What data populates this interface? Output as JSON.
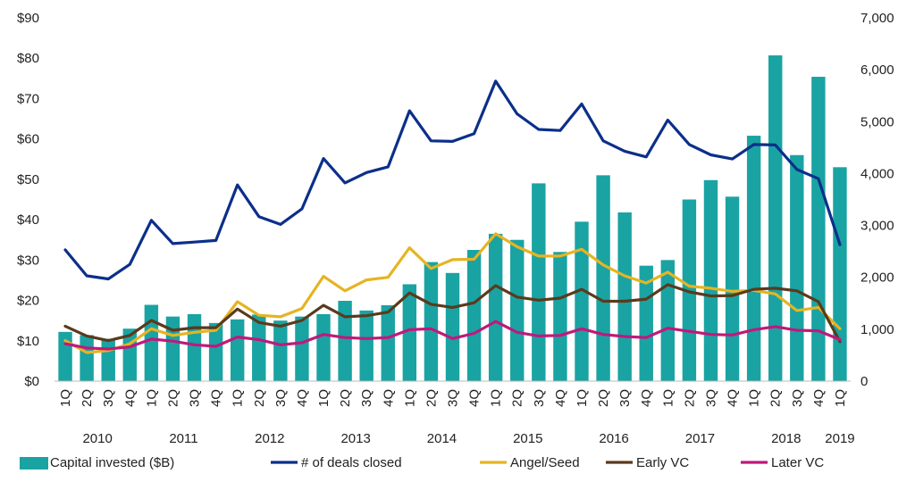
{
  "chart_data": {
    "type": "bar+line",
    "title": "",
    "categories": [
      "1Q",
      "2Q",
      "3Q",
      "4Q",
      "1Q",
      "2Q",
      "3Q",
      "4Q",
      "1Q",
      "2Q",
      "3Q",
      "4Q",
      "1Q",
      "2Q",
      "3Q",
      "4Q",
      "1Q",
      "2Q",
      "3Q",
      "4Q",
      "1Q",
      "2Q",
      "3Q",
      "4Q",
      "1Q",
      "2Q",
      "3Q",
      "4Q",
      "1Q",
      "2Q",
      "3Q",
      "4Q",
      "1Q",
      "2Q",
      "3Q",
      "4Q",
      "1Q"
    ],
    "years": [
      {
        "label": "2010",
        "start": 0,
        "end": 3
      },
      {
        "label": "2011",
        "start": 4,
        "end": 7
      },
      {
        "label": "2012",
        "start": 8,
        "end": 11
      },
      {
        "label": "2013",
        "start": 12,
        "end": 15
      },
      {
        "label": "2014",
        "start": 16,
        "end": 19
      },
      {
        "label": "2015",
        "start": 20,
        "end": 23
      },
      {
        "label": "2016",
        "start": 24,
        "end": 27
      },
      {
        "label": "2017",
        "start": 28,
        "end": 31
      },
      {
        "label": "2018",
        "start": 32,
        "end": 35
      },
      {
        "label": "2019",
        "start": 36,
        "end": 36
      }
    ],
    "y_left": {
      "ticks": [
        "$0",
        "$10",
        "$20",
        "$30",
        "$40",
        "$50",
        "$60",
        "$70",
        "$80",
        "$90"
      ],
      "min": 0,
      "max": 90
    },
    "y_right": {
      "ticks": [
        "0",
        "1,000",
        "2,000",
        "3,000",
        "4,000",
        "5,000",
        "6,000",
        "7,000"
      ],
      "min": 0,
      "max": 7000
    },
    "bars": {
      "name": "Capital invested ($B)",
      "color": "#1aa3a3",
      "axis": "left",
      "values": [
        12.2,
        11.4,
        10.5,
        13.0,
        18.9,
        16.0,
        16.6,
        14.4,
        15.3,
        16.5,
        15.0,
        16.0,
        16.6,
        19.9,
        17.5,
        18.8,
        24.0,
        29.5,
        26.8,
        32.5,
        36.5,
        35.0,
        49.0,
        32.0,
        39.5,
        51.0,
        41.8,
        28.6,
        30.0,
        45.0,
        49.8,
        45.7,
        60.8,
        80.7,
        56.0,
        75.4,
        53.0
      ]
    },
    "series": [
      {
        "name": "# of deals closed",
        "color": "#0b2f8a",
        "axis": "right",
        "values": [
          2530,
          2030,
          1970,
          2250,
          3100,
          2650,
          2680,
          2710,
          3780,
          3170,
          3020,
          3320,
          4290,
          3820,
          4020,
          4130,
          5210,
          4630,
          4620,
          4770,
          5780,
          5150,
          4850,
          4830,
          5340,
          4630,
          4430,
          4320,
          5030,
          4560,
          4360,
          4280,
          4560,
          4550,
          4080,
          3900,
          2630
        ]
      },
      {
        "name": "Angel/Seed",
        "color": "#e6b422",
        "axis": "right",
        "values": [
          780,
          550,
          590,
          720,
          1010,
          880,
          940,
          980,
          1530,
          1270,
          1240,
          1400,
          2020,
          1740,
          1950,
          2000,
          2570,
          2170,
          2340,
          2350,
          2840,
          2590,
          2410,
          2410,
          2540,
          2240,
          2030,
          1890,
          2100,
          1830,
          1790,
          1730,
          1750,
          1680,
          1360,
          1420,
          1010
        ]
      },
      {
        "name": "Early VC",
        "color": "#5a3a1c",
        "axis": "right",
        "values": [
          1060,
          870,
          780,
          880,
          1170,
          980,
          1030,
          1030,
          1390,
          1130,
          1060,
          1170,
          1460,
          1240,
          1260,
          1330,
          1700,
          1480,
          1420,
          1510,
          1840,
          1620,
          1560,
          1600,
          1770,
          1540,
          1540,
          1580,
          1860,
          1720,
          1640,
          1650,
          1770,
          1790,
          1740,
          1530,
          760
        ]
      },
      {
        "name": "Later VC",
        "color": "#c0187c",
        "axis": "right",
        "values": [
          720,
          640,
          620,
          660,
          810,
          770,
          700,
          670,
          850,
          800,
          700,
          740,
          900,
          840,
          820,
          840,
          990,
          1010,
          820,
          920,
          1150,
          940,
          870,
          880,
          1010,
          900,
          860,
          840,
          1020,
          960,
          900,
          890,
          990,
          1050,
          980,
          970,
          800
        ]
      }
    ],
    "legend": [
      {
        "label": "Capital invested ($B)",
        "color": "#1aa3a3",
        "kind": "box"
      },
      {
        "label": "# of deals closed",
        "color": "#0b2f8a",
        "kind": "line"
      },
      {
        "label": "Angel/Seed",
        "color": "#e6b422",
        "kind": "line"
      },
      {
        "label": "Early VC",
        "color": "#5a3a1c",
        "kind": "line"
      },
      {
        "label": "Later VC",
        "color": "#c0187c",
        "kind": "line"
      }
    ],
    "legend_position": "bottom",
    "grid": false
  }
}
